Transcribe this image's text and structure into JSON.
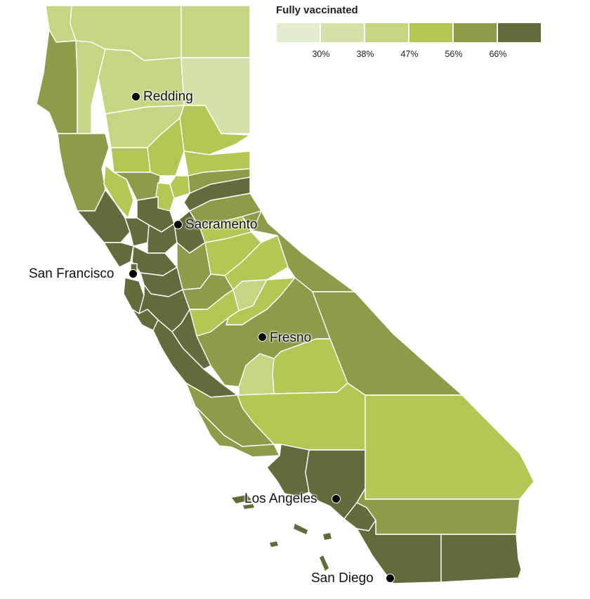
{
  "legend": {
    "title": "Fully vaccinated",
    "colors": [
      "#e2ecce",
      "#d3e0a8",
      "#c4d682",
      "#b3c754",
      "#8c9c48",
      "#636b3c"
    ],
    "ticks": [
      "30%",
      "38%",
      "47%",
      "56%",
      "66%"
    ]
  },
  "cities": {
    "redding": "Redding",
    "sacramento": "Sacramento",
    "san_francisco": "San Francisco",
    "fresno": "Fresno",
    "los_angeles": "Los Angeles",
    "san_diego": "San Diego"
  },
  "county_levels": {
    "del-norte": 2,
    "siskiyou": 2,
    "modoc": 2,
    "humboldt": 4,
    "trinity": 2,
    "shasta": 2,
    "lassen": 1,
    "mendocino": 4,
    "tehama": 2,
    "plumas": 3,
    "glenn": 3,
    "butte": 3,
    "sierra": 3,
    "lake": 3,
    "colusa": 4,
    "yuba": 3,
    "nevada": 4,
    "placer": 5,
    "sutter": 3,
    "yolo": 5,
    "sonoma": 5,
    "napa": 5,
    "solano": 5,
    "marin": 5,
    "sacramento": 5,
    "el-dorado": 4,
    "alpine": 4,
    "amador": 3,
    "calaveras": 3,
    "san-joaquin": 4,
    "contra-costa": 5,
    "alameda": 5,
    "san-francisco": 5,
    "san-mateo": 5,
    "santa-clara": 5,
    "santa-cruz": 5,
    "stanislaus": 4,
    "tuolumne": 3,
    "mariposa": 2,
    "mono": 4,
    "merced": 3,
    "madera": 3,
    "san-benito": 5,
    "monterey": 5,
    "fresno": 4,
    "inyo": 4,
    "tulare": 3,
    "kings": 2,
    "san-luis-obispo": 4,
    "kern": 3,
    "santa-barbara": 4,
    "ventura": 5,
    "los-angeles": 5,
    "san-bernardino": 3,
    "orange": 5,
    "riverside": 4,
    "san-diego": 5,
    "imperial": 5
  }
}
